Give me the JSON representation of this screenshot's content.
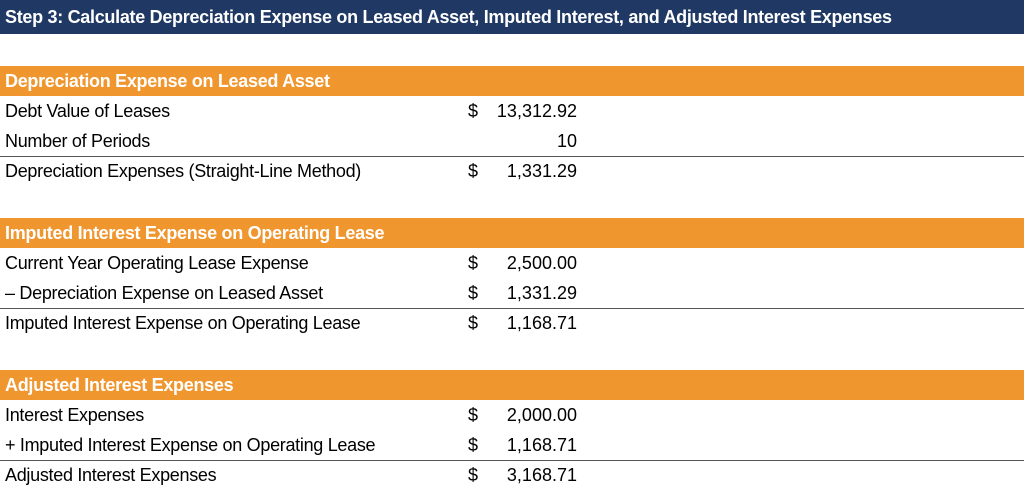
{
  "title": "Step 3: Calculate Depreciation Expense on Leased Asset, Imputed Interest, and Adjusted Interest Expenses",
  "sections": [
    {
      "heading": "Depreciation Expense on Leased Asset",
      "rows": [
        {
          "label": "Debt Value of Leases",
          "currency": "$",
          "value": "13,312.92"
        },
        {
          "label": "Number of Periods",
          "value": "10"
        },
        {
          "label": "Depreciation Expenses (Straight-Line Method)",
          "currency": "$",
          "value": "1,331.29"
        }
      ]
    },
    {
      "heading": "Imputed Interest Expense on Operating Lease",
      "rows": [
        {
          "label": "Current Year Operating Lease Expense",
          "currency": "$",
          "value": "2,500.00"
        },
        {
          "label": "– Depreciation Expense on Leased Asset",
          "currency": "$",
          "value": "1,331.29"
        },
        {
          "label": "Imputed Interest Expense on Operating Lease",
          "currency": "$",
          "value": "1,168.71"
        }
      ]
    },
    {
      "heading": "Adjusted Interest Expenses",
      "rows": [
        {
          "label": "Interest Expenses",
          "currency": "$",
          "value": "2,000.00"
        },
        {
          "label": "+ Imputed Interest Expense on Operating Lease",
          "currency": "$",
          "value": "1,168.71"
        },
        {
          "label": "Adjusted Interest Expenses",
          "currency": "$",
          "value": "3,168.71"
        }
      ]
    }
  ]
}
